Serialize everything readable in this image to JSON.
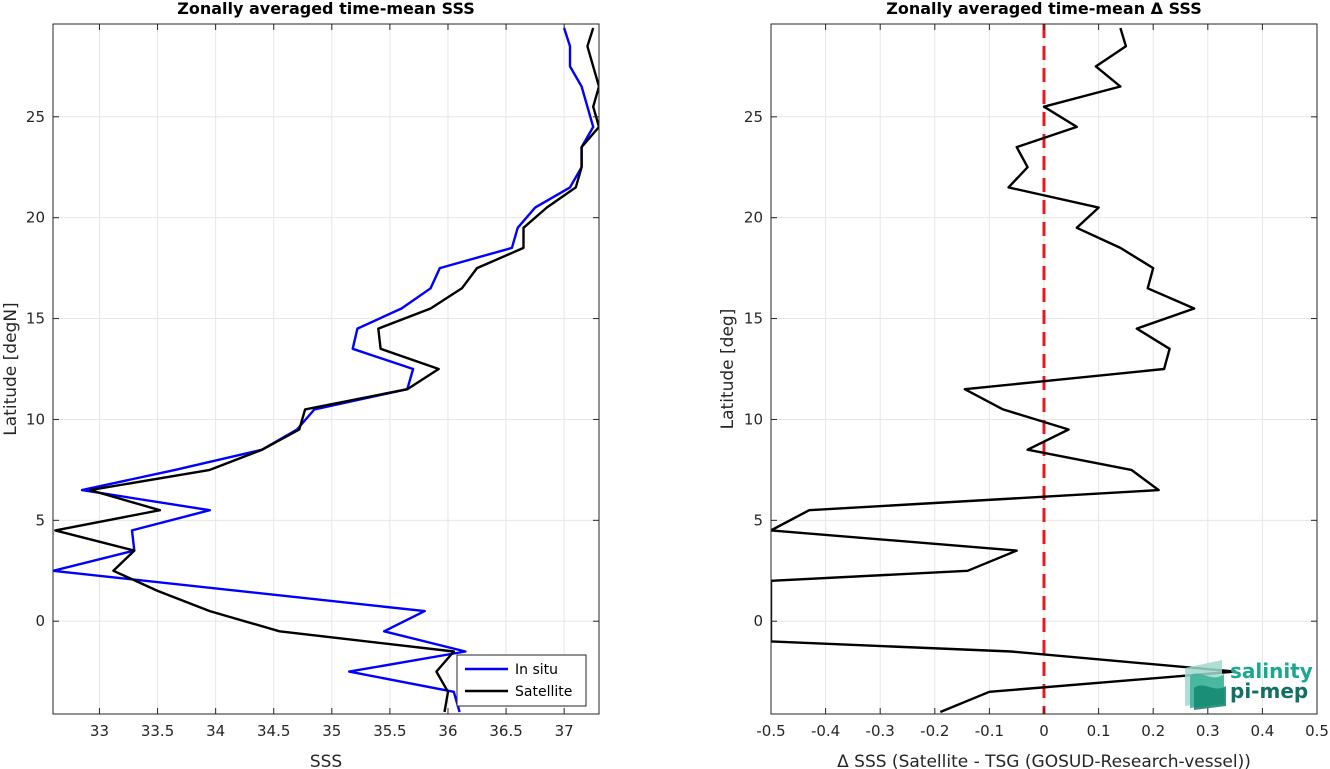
{
  "chart_data": [
    {
      "type": "line",
      "title": "Zonally averaged time-mean SSS",
      "xlabel": "SSS",
      "ylabel": "Latitude [degN]",
      "xlim": [
        32.6,
        37.3
      ],
      "ylim": [
        -4.6,
        29.6
      ],
      "xticks": [
        33,
        33.5,
        34,
        34.5,
        35,
        35.5,
        36,
        36.5,
        37
      ],
      "xtick_labels": [
        "33",
        "33.5",
        "34",
        "34.5",
        "35",
        "35.5",
        "36",
        "36.5",
        "37"
      ],
      "yticks": [
        0,
        5,
        10,
        15,
        20,
        25
      ],
      "ytick_labels": [
        "0",
        "5",
        "10",
        "15",
        "20",
        "25"
      ],
      "grid": true,
      "legend_position": "bottom-right",
      "series": [
        {
          "name": "In situ",
          "color": "#0000ff",
          "points": [
            [
              36.1,
              -4.5
            ],
            [
              36.05,
              -3.5
            ],
            [
              35.15,
              -2.5
            ],
            [
              36.15,
              -1.5
            ],
            [
              35.45,
              -0.5
            ],
            [
              35.8,
              0.5
            ],
            [
              32.6,
              2.5
            ],
            [
              33.3,
              3.5
            ],
            [
              33.28,
              4.5
            ],
            [
              33.95,
              5.5
            ],
            [
              32.85,
              6.5
            ],
            [
              33.65,
              7.5
            ],
            [
              34.4,
              8.5
            ],
            [
              34.7,
              9.5
            ],
            [
              34.85,
              10.5
            ],
            [
              35.65,
              11.5
            ],
            [
              35.7,
              12.5
            ],
            [
              35.18,
              13.5
            ],
            [
              35.22,
              14.5
            ],
            [
              35.6,
              15.5
            ],
            [
              35.85,
              16.5
            ],
            [
              35.93,
              17.5
            ],
            [
              36.55,
              18.5
            ],
            [
              36.6,
              19.5
            ],
            [
              36.75,
              20.5
            ],
            [
              37.05,
              21.5
            ],
            [
              37.15,
              22.5
            ],
            [
              37.15,
              23.5
            ],
            [
              37.25,
              24.5
            ],
            [
              37.2,
              25.5
            ],
            [
              37.15,
              26.5
            ],
            [
              37.05,
              27.5
            ],
            [
              37.05,
              28.5
            ],
            [
              37.0,
              29.4
            ]
          ]
        },
        {
          "name": "Satellite",
          "color": "#000000",
          "points": [
            [
              35.97,
              -4.5
            ],
            [
              36.0,
              -3.5
            ],
            [
              35.9,
              -2.5
            ],
            [
              36.05,
              -1.5
            ],
            [
              34.55,
              -0.5
            ],
            [
              33.95,
              0.5
            ],
            [
              33.5,
              1.5
            ],
            [
              33.12,
              2.5
            ],
            [
              33.3,
              3.5
            ],
            [
              32.62,
              4.5
            ],
            [
              33.52,
              5.5
            ],
            [
              32.92,
              6.5
            ],
            [
              33.95,
              7.5
            ],
            [
              34.4,
              8.5
            ],
            [
              34.72,
              9.5
            ],
            [
              34.77,
              10.5
            ],
            [
              35.65,
              11.5
            ],
            [
              35.92,
              12.5
            ],
            [
              35.42,
              13.5
            ],
            [
              35.4,
              14.5
            ],
            [
              35.85,
              15.5
            ],
            [
              36.12,
              16.5
            ],
            [
              36.25,
              17.5
            ],
            [
              36.65,
              18.5
            ],
            [
              36.65,
              19.5
            ],
            [
              36.85,
              20.5
            ],
            [
              37.1,
              21.5
            ],
            [
              37.15,
              22.5
            ],
            [
              37.15,
              23.5
            ],
            [
              37.3,
              24.5
            ],
            [
              37.25,
              25.5
            ],
            [
              37.3,
              26.5
            ],
            [
              37.25,
              27.5
            ],
            [
              37.2,
              28.5
            ],
            [
              37.25,
              29.4
            ]
          ]
        }
      ]
    },
    {
      "type": "line",
      "title": "Zonally averaged time-mean Δ SSS",
      "xlabel": "Δ SSS (Satellite - TSG (GOSUD-Research-vessel))",
      "ylabel": "Latitude [deg]",
      "xlim": [
        -0.5,
        0.5
      ],
      "ylim": [
        -4.6,
        29.6
      ],
      "xticks": [
        -0.5,
        -0.4,
        -0.3,
        -0.2,
        -0.1,
        0,
        0.1,
        0.2,
        0.3,
        0.4,
        0.5
      ],
      "xtick_labels": [
        "-0.5",
        "-0.4",
        "-0.3",
        "-0.2",
        "-0.1",
        "0",
        "0.1",
        "0.2",
        "0.3",
        "0.4",
        "0.5"
      ],
      "yticks": [
        0,
        5,
        10,
        15,
        20,
        25
      ],
      "ytick_labels": [
        "0",
        "5",
        "10",
        "15",
        "20",
        "25"
      ],
      "grid": true,
      "reference_line": {
        "x": 0,
        "color": "#e41a1c",
        "style": "dashed"
      },
      "series": [
        {
          "color": "#000000",
          "points": [
            [
              -0.19,
              -4.5
            ],
            [
              -0.1,
              -3.5
            ],
            [
              0.35,
              -2.5
            ],
            [
              -0.06,
              -1.5
            ],
            [
              -0.5,
              -1.0
            ],
            [
              -0.5,
              2.0
            ],
            [
              -0.14,
              2.5
            ],
            [
              -0.05,
              3.5
            ],
            [
              -0.5,
              4.5
            ],
            [
              -0.43,
              5.5
            ],
            [
              0.21,
              6.5
            ],
            [
              0.16,
              7.5
            ],
            [
              -0.03,
              8.5
            ],
            [
              0.045,
              9.5
            ],
            [
              -0.075,
              10.5
            ],
            [
              -0.145,
              11.5
            ],
            [
              0.22,
              12.5
            ],
            [
              0.23,
              13.5
            ],
            [
              0.17,
              14.5
            ],
            [
              0.275,
              15.5
            ],
            [
              0.19,
              16.5
            ],
            [
              0.2,
              17.5
            ],
            [
              0.14,
              18.5
            ],
            [
              0.06,
              19.5
            ],
            [
              0.1,
              20.5
            ],
            [
              -0.065,
              21.5
            ],
            [
              -0.03,
              22.5
            ],
            [
              -0.05,
              23.5
            ],
            [
              0.06,
              24.5
            ],
            [
              0.0,
              25.5
            ],
            [
              0.14,
              26.5
            ],
            [
              0.095,
              27.5
            ],
            [
              0.15,
              28.5
            ],
            [
              0.14,
              29.4
            ]
          ]
        }
      ]
    }
  ],
  "legend": {
    "items": [
      "In situ",
      "Satellite"
    ]
  },
  "logo": {
    "line1": "salinity",
    "line2": "pi-mep",
    "color1": "#1aa88e",
    "color2": "#136f63"
  }
}
